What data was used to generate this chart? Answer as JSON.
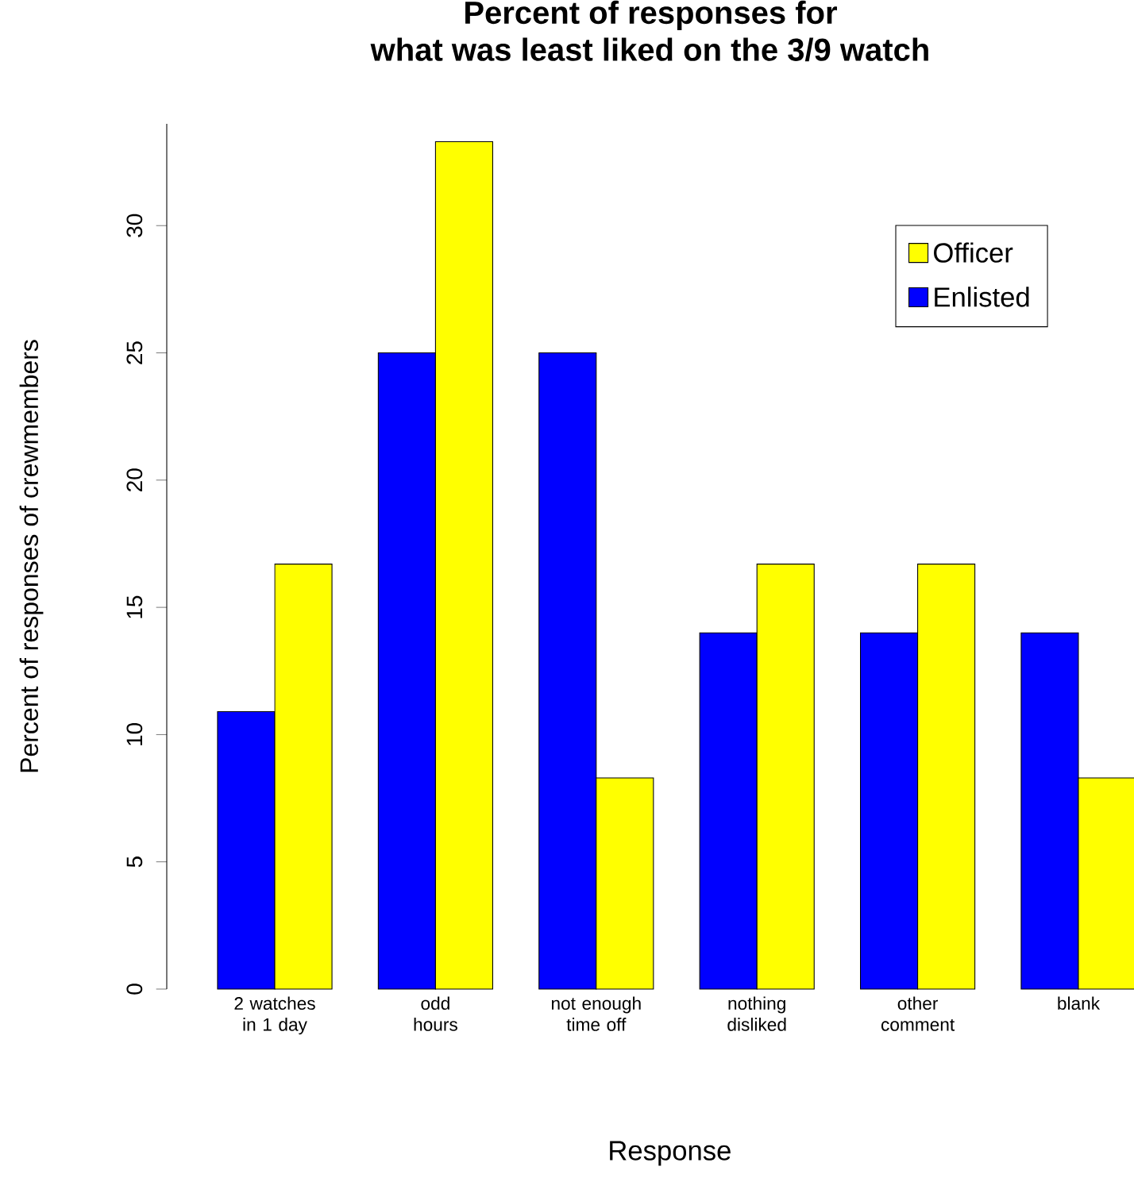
{
  "chart_data": {
    "type": "bar",
    "title": "Percent of responses for\nwhat was least liked on the 3/9 watch",
    "xlabel": "Response",
    "ylabel": "Percent of responses of crewmembers",
    "categories": [
      "2 watches\nin 1 day",
      "odd\nhours",
      "not enough\ntime off",
      "nothing\ndisliked",
      "other\ncomment",
      "blank"
    ],
    "series": [
      {
        "name": "Enlisted",
        "color": "#0000ff",
        "values": [
          10.9,
          25,
          25,
          14,
          14,
          14
        ]
      },
      {
        "name": "Officer",
        "color": "#ffff00",
        "values": [
          16.7,
          33.3,
          8.3,
          16.7,
          16.7,
          8.3
        ]
      }
    ],
    "ylim": [
      0,
      34
    ],
    "yticks": [
      0,
      5,
      10,
      15,
      20,
      25,
      30
    ],
    "grid": false,
    "legend": "top right"
  }
}
